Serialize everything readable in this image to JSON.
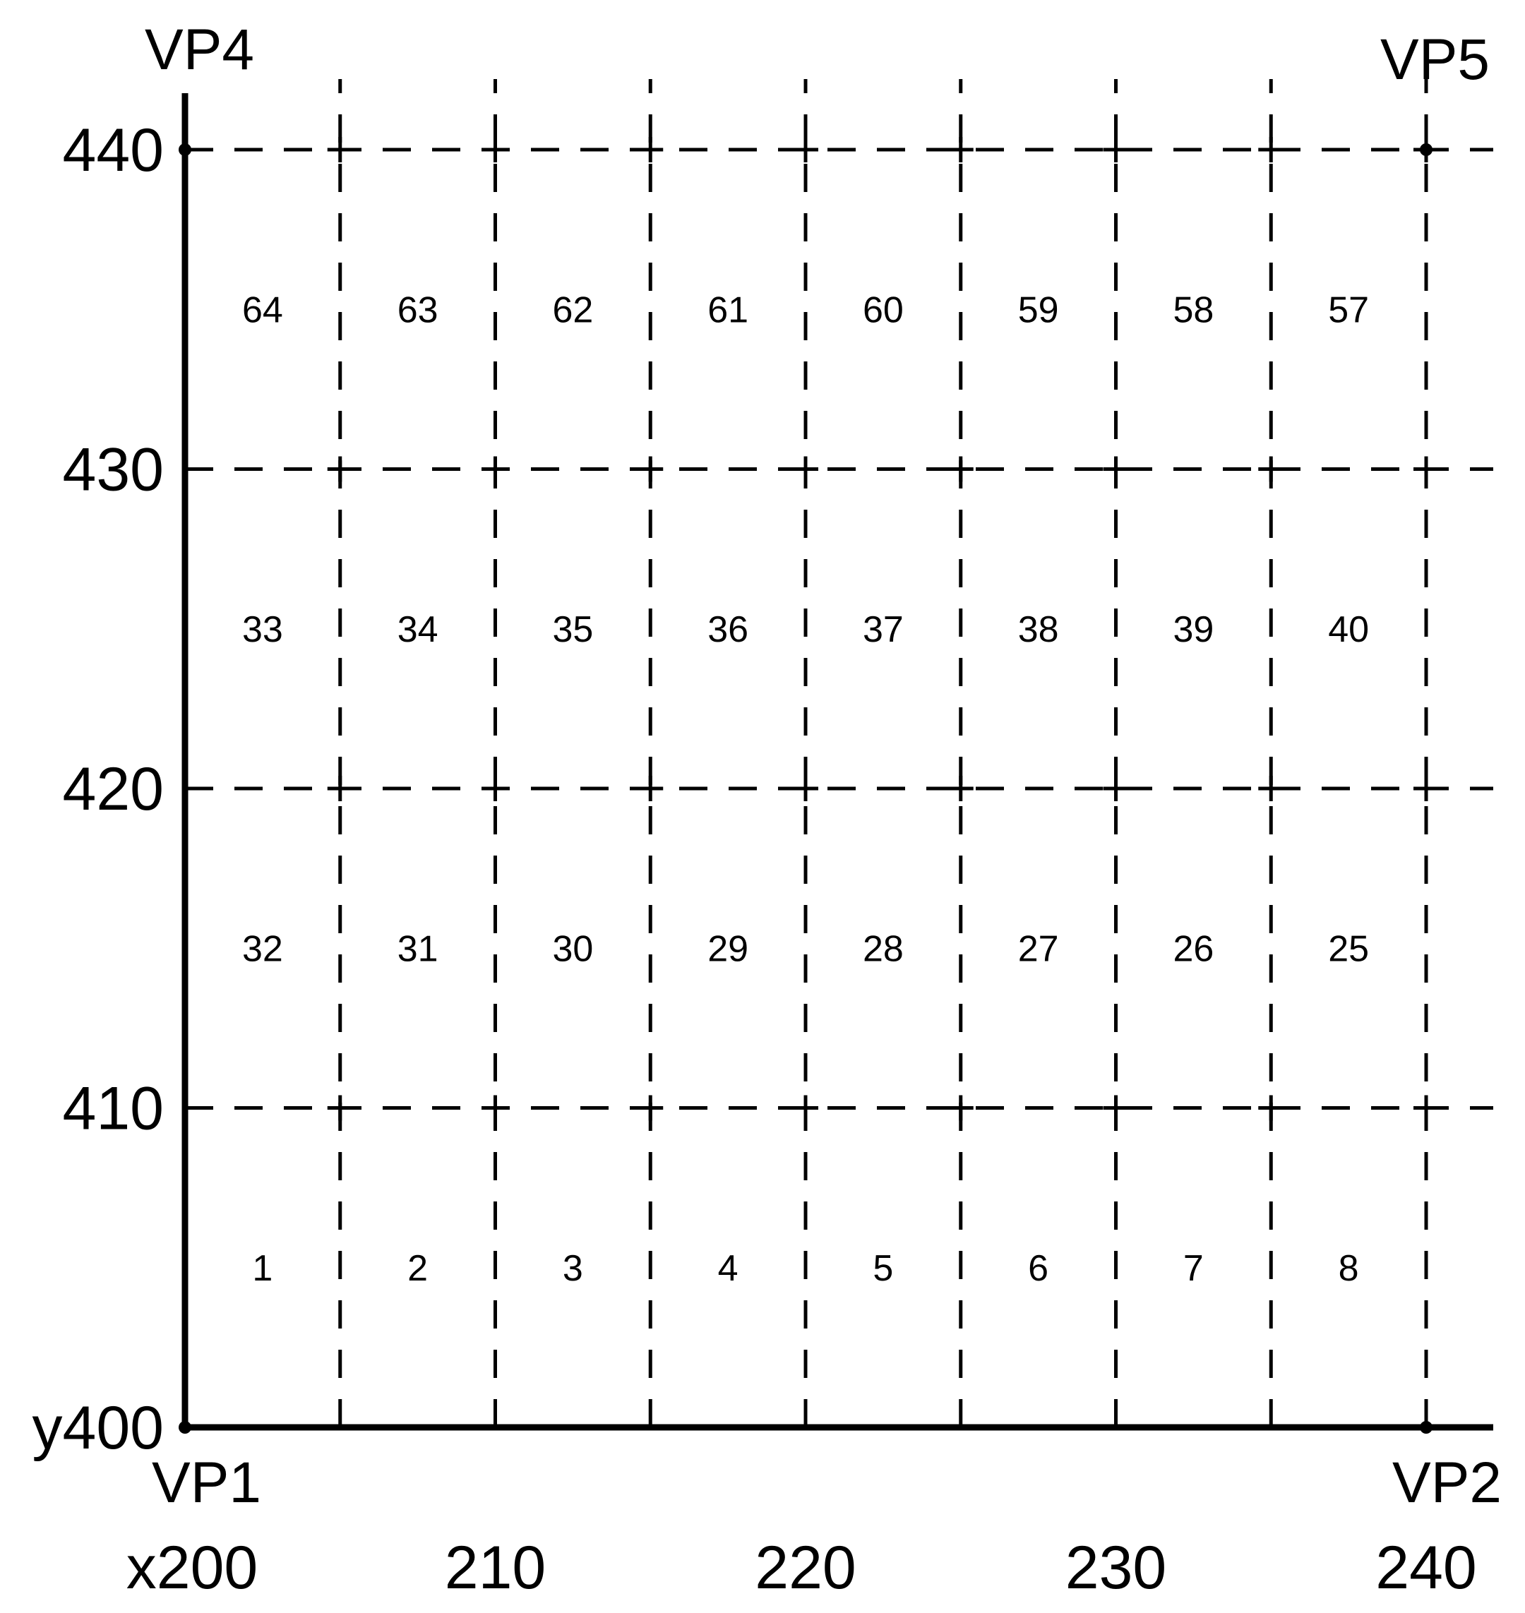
{
  "colors": {
    "ink": "#000000",
    "paper": "#ffffff"
  },
  "corner_labels": {
    "top_left": "VP4",
    "top_right": "VP5",
    "bottom_left": "VP1",
    "bottom_right": "VP2"
  },
  "x_axis": {
    "ticks": [
      {
        "value": 200,
        "label": "x200"
      },
      {
        "value": 210,
        "label": "210"
      },
      {
        "value": 220,
        "label": "220"
      },
      {
        "value": 230,
        "label": "230"
      },
      {
        "value": 240,
        "label": "240"
      }
    ]
  },
  "y_axis": {
    "ticks": [
      {
        "value": 400,
        "label": "y400"
      },
      {
        "value": 410,
        "label": "410"
      },
      {
        "value": 420,
        "label": "420"
      },
      {
        "value": 430,
        "label": "430"
      },
      {
        "value": 440,
        "label": "440"
      }
    ]
  },
  "grid": {
    "x_range": [
      200,
      240
    ],
    "y_range": [
      400,
      440
    ],
    "columns": 8,
    "rows": 4,
    "cell_labels": [
      [
        "1",
        "2",
        "3",
        "4",
        "5",
        "6",
        "7",
        "8"
      ],
      [
        "32",
        "31",
        "30",
        "29",
        "28",
        "27",
        "26",
        "25"
      ],
      [
        "33",
        "34",
        "35",
        "36",
        "37",
        "38",
        "39",
        "40"
      ],
      [
        "64",
        "63",
        "62",
        "61",
        "60",
        "59",
        "58",
        "57"
      ]
    ]
  }
}
